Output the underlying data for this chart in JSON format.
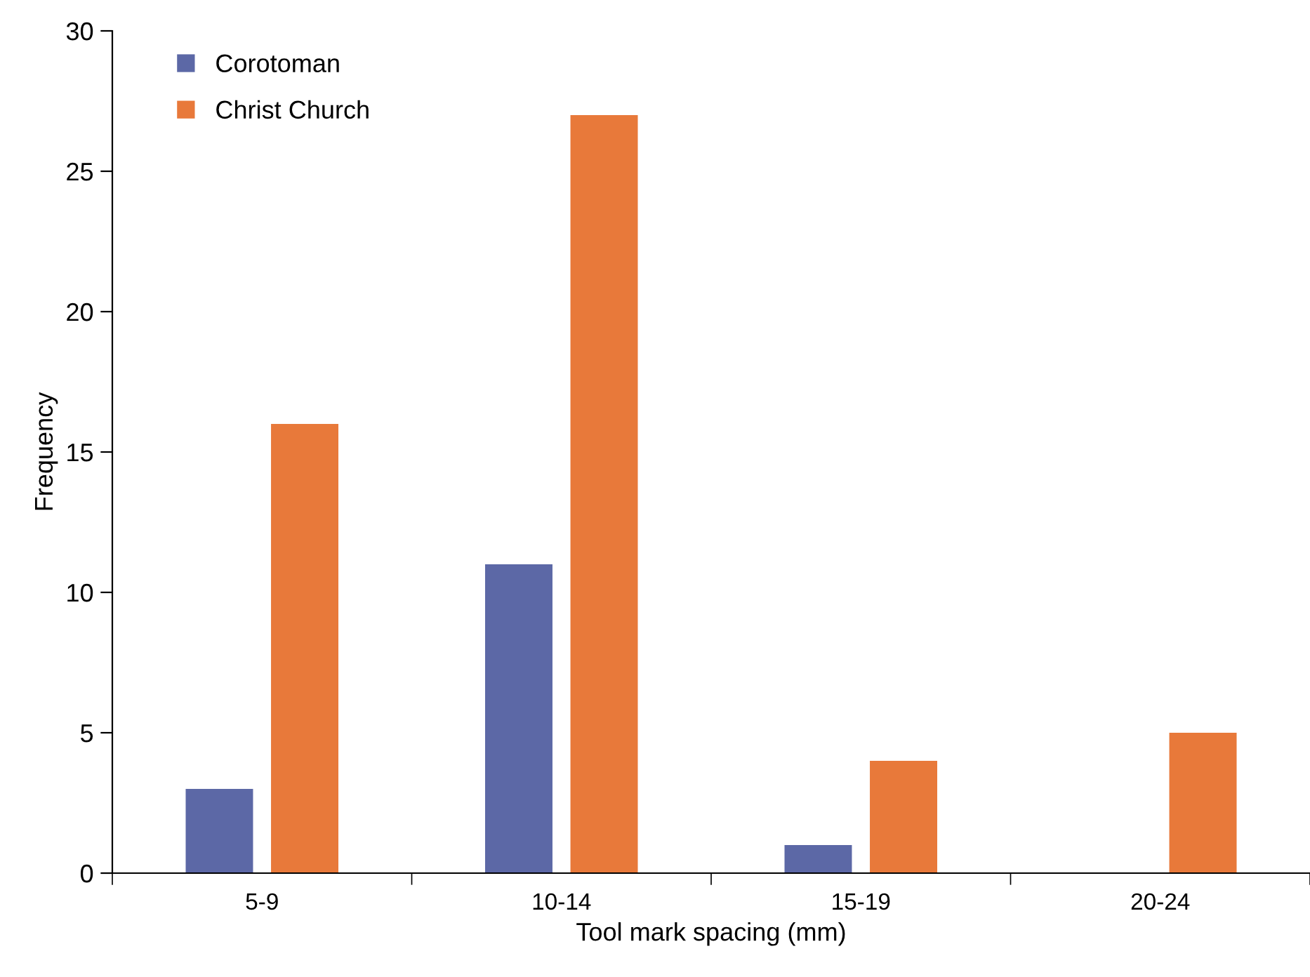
{
  "chart_data": {
    "type": "bar",
    "xlabel": "Tool mark spacing (mm)",
    "ylabel": "Frequency",
    "categories": [
      "5-9",
      "10-14",
      "15-19",
      "20-24"
    ],
    "series": [
      {
        "name": "Corotoman",
        "color": "#5c68a6",
        "values": [
          3,
          11,
          1,
          0
        ]
      },
      {
        "name": "Christ Church",
        "color": "#e8793a",
        "values": [
          16,
          27,
          4,
          5
        ]
      }
    ],
    "ylim": [
      0,
      30
    ],
    "yticks": [
      0,
      5,
      10,
      15,
      20,
      25,
      30
    ],
    "grid": false,
    "legend": "top left"
  }
}
